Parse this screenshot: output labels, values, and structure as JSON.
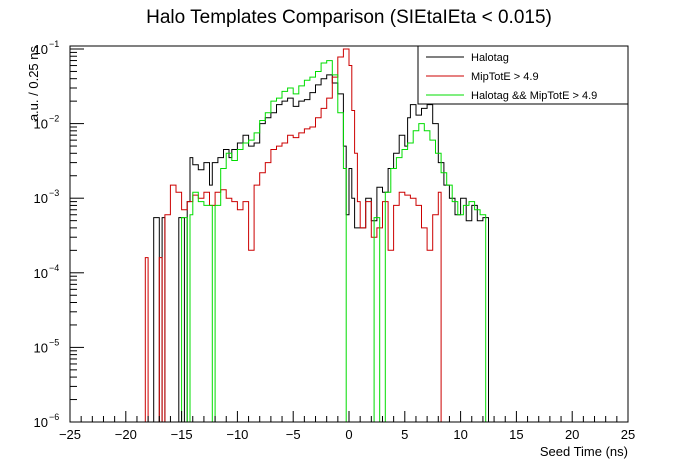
{
  "chart_data": {
    "type": "line",
    "title": "Halo Templates Comparison (SIEtaIEta < 0.015)",
    "xlabel": "Seed Time (ns)",
    "ylabel": "a.u. / 0.25 ns",
    "xlim": [
      -25,
      25
    ],
    "ylim": [
      1e-06,
      0.12
    ],
    "ylog": true,
    "grid": false,
    "legend_position": "top-right",
    "x_ticks": [
      -25,
      -20,
      -15,
      -10,
      -5,
      0,
      5,
      10,
      15,
      20,
      25
    ],
    "x_tick_labels": [
      "−25",
      "−20",
      "−15",
      "−10",
      "−5",
      "0",
      "5",
      "10",
      "15",
      "20",
      "25"
    ],
    "y_ticks": [
      1e-06,
      1e-05,
      0.0001,
      0.001,
      0.01,
      0.1
    ],
    "y_tick_labels": [
      {
        "base": "10",
        "exp": "−6"
      },
      {
        "base": "10",
        "exp": "−5"
      },
      {
        "base": "10",
        "exp": "−4"
      },
      {
        "base": "10",
        "exp": "−3"
      },
      {
        "base": "10",
        "exp": "−2"
      },
      {
        "base": "10",
        "exp": "−1"
      }
    ],
    "series": [
      {
        "name": "Halotag",
        "color": "#000000",
        "points": [
          [
            -25,
            1e-06
          ],
          [
            -17.5,
            0.00055
          ],
          [
            -17,
            1e-06
          ],
          [
            -16.75,
            0.00055
          ],
          [
            -16.5,
            1e-06
          ],
          [
            -15.25,
            0.00055
          ],
          [
            -14.75,
            1e-06
          ],
          [
            -14.5,
            0.0009
          ],
          [
            -14.25,
            0.0035
          ],
          [
            -14,
            0.0028
          ],
          [
            -13.5,
            0.0024
          ],
          [
            -13,
            0.003
          ],
          [
            -12.5,
            0.0015
          ],
          [
            -12.25,
            0.003
          ],
          [
            -11.75,
            0.0035
          ],
          [
            -11.25,
            0.0045
          ],
          [
            -10.75,
            0.0035
          ],
          [
            -10.5,
            0.0045
          ],
          [
            -10,
            0.0055
          ],
          [
            -9.5,
            0.007
          ],
          [
            -9,
            0.005
          ],
          [
            -8.5,
            0.0055
          ],
          [
            -8,
            0.01
          ],
          [
            -7.5,
            0.012
          ],
          [
            -7,
            0.014
          ],
          [
            -6.5,
            0.018
          ],
          [
            -6,
            0.02
          ],
          [
            -5.5,
            0.022
          ],
          [
            -5,
            0.017
          ],
          [
            -4.5,
            0.02
          ],
          [
            -4,
            0.021
          ],
          [
            -3.5,
            0.026
          ],
          [
            -3,
            0.033
          ],
          [
            -2.5,
            0.04
          ],
          [
            -2,
            0.045
          ],
          [
            -1.5,
            0.035
          ],
          [
            -1,
            0.025
          ],
          [
            -0.5,
            0.005
          ],
          [
            -0.25,
            0.0006
          ],
          [
            0,
            0.0025
          ],
          [
            0.25,
            0.001
          ],
          [
            0.5,
            0.0004
          ],
          [
            1.5,
            0.001
          ],
          [
            2,
            0.0005
          ],
          [
            2.5,
            0.0014
          ],
          [
            3,
            0.0012
          ],
          [
            3.5,
            0.0025
          ],
          [
            4,
            0.004
          ],
          [
            4.5,
            0.007
          ],
          [
            5,
            0.005
          ],
          [
            5.25,
            0.012
          ],
          [
            5.5,
            0.018
          ],
          [
            6,
            0.013
          ],
          [
            6.5,
            0.016
          ],
          [
            7,
            0.018
          ],
          [
            7.5,
            0.01
          ],
          [
            8,
            0.003
          ],
          [
            8.5,
            0.0015
          ],
          [
            9,
            0.001
          ],
          [
            9.5,
            0.0006
          ],
          [
            10,
            0.001
          ],
          [
            10.5,
            0.0005
          ],
          [
            11,
            0.0008
          ],
          [
            11.5,
            0.0005
          ],
          [
            12,
            0.00055
          ],
          [
            12.5,
            1e-06
          ],
          [
            25,
            1e-06
          ]
        ]
      },
      {
        "name": "MipTotE > 4.9",
        "color": "#cc0000",
        "points": [
          [
            -25,
            1e-06
          ],
          [
            -18.25,
            0.00016
          ],
          [
            -18,
            1e-06
          ],
          [
            -17,
            0.00016
          ],
          [
            -16.75,
            1e-06
          ],
          [
            -16.5,
            0.0006
          ],
          [
            -16,
            0.0015
          ],
          [
            -15.5,
            0.0012
          ],
          [
            -15,
            0.0007
          ],
          [
            -14.5,
            0.0009
          ],
          [
            -14,
            0.0011
          ],
          [
            -13.5,
            0.001
          ],
          [
            -13,
            0.0012
          ],
          [
            -12.5,
            0.0008
          ],
          [
            -12,
            0.0012
          ],
          [
            -11.5,
            0.0013
          ],
          [
            -11,
            0.001
          ],
          [
            -10.5,
            0.0009
          ],
          [
            -10,
            0.0007
          ],
          [
            -9.5,
            0.0009
          ],
          [
            -9,
            0.0002
          ],
          [
            -8.5,
            0.0015
          ],
          [
            -8,
            0.0022
          ],
          [
            -7.5,
            0.003
          ],
          [
            -7,
            0.0045
          ],
          [
            -6.5,
            0.005
          ],
          [
            -6,
            0.0055
          ],
          [
            -5.5,
            0.007
          ],
          [
            -5,
            0.0065
          ],
          [
            -4.5,
            0.0075
          ],
          [
            -4,
            0.0085
          ],
          [
            -3.5,
            0.009
          ],
          [
            -3,
            0.012
          ],
          [
            -2.5,
            0.016
          ],
          [
            -2,
            0.022
          ],
          [
            -1.5,
            0.042
          ],
          [
            -1,
            0.078
          ],
          [
            -0.5,
            0.1
          ],
          [
            0,
            0.06
          ],
          [
            0.25,
            0.015
          ],
          [
            0.5,
            0.004
          ],
          [
            0.75,
            0.0009
          ],
          [
            1,
            0.0004
          ],
          [
            1.5,
            0.0009
          ],
          [
            2,
            0.0003
          ],
          [
            2.5,
            0.0004
          ],
          [
            3,
            0.0009
          ],
          [
            3.5,
            0.0002
          ],
          [
            4,
            0.0008
          ],
          [
            4.5,
            0.0012
          ],
          [
            5,
            0.0011
          ],
          [
            5.5,
            0.001
          ],
          [
            6,
            0.0008
          ],
          [
            6.5,
            0.0004
          ],
          [
            7,
            0.0002
          ],
          [
            7.5,
            0.0006
          ],
          [
            8,
            0.0012
          ],
          [
            8.25,
            1e-06
          ],
          [
            25,
            1e-06
          ]
        ]
      },
      {
        "name": "Halotag && MipTotE > 4.9",
        "color": "#00dd00",
        "points": [
          [
            -25,
            1e-06
          ],
          [
            -15,
            0.00055
          ],
          [
            -14.5,
            1e-06
          ],
          [
            -14.25,
            0.0006
          ],
          [
            -14,
            0.0012
          ],
          [
            -13.5,
            0.0009
          ],
          [
            -13,
            0.0008
          ],
          [
            -12.5,
            0.0008
          ],
          [
            -12.25,
            1e-06
          ],
          [
            -12,
            0.0008
          ],
          [
            -11.5,
            0.0025
          ],
          [
            -11,
            0.004
          ],
          [
            -10.5,
            0.0032
          ],
          [
            -10,
            0.0045
          ],
          [
            -9.5,
            0.0055
          ],
          [
            -9,
            0.006
          ],
          [
            -8.5,
            0.0075
          ],
          [
            -8,
            0.011
          ],
          [
            -7.5,
            0.014
          ],
          [
            -7,
            0.02
          ],
          [
            -6.5,
            0.022
          ],
          [
            -6,
            0.027
          ],
          [
            -5.5,
            0.03
          ],
          [
            -5,
            0.025
          ],
          [
            -4.5,
            0.032
          ],
          [
            -4,
            0.038
          ],
          [
            -3.5,
            0.042
          ],
          [
            -3,
            0.05
          ],
          [
            -2.5,
            0.065
          ],
          [
            -2,
            0.07
          ],
          [
            -1.5,
            0.045
          ],
          [
            -1,
            0.014
          ],
          [
            -0.5,
            0.0025
          ],
          [
            -0.25,
            1e-06
          ],
          [
            2.25,
            0.00055
          ],
          [
            2.75,
            1e-06
          ],
          [
            3.25,
            0.0012
          ],
          [
            3.75,
            0.0025
          ],
          [
            4.25,
            0.0035
          ],
          [
            4.75,
            0.0045
          ],
          [
            5.25,
            0.0055
          ],
          [
            5.75,
            0.008
          ],
          [
            6.25,
            0.01
          ],
          [
            6.75,
            0.008
          ],
          [
            7.25,
            0.006
          ],
          [
            7.75,
            0.004
          ],
          [
            8.25,
            0.0022
          ],
          [
            8.75,
            0.0015
          ],
          [
            9.25,
            0.0009
          ],
          [
            9.75,
            0.0006
          ],
          [
            10.25,
            0.0008
          ],
          [
            10.75,
            0.0009
          ],
          [
            11.25,
            0.0007
          ],
          [
            11.75,
            0.0006
          ],
          [
            12.25,
            1e-06
          ],
          [
            25,
            1e-06
          ]
        ]
      }
    ]
  }
}
